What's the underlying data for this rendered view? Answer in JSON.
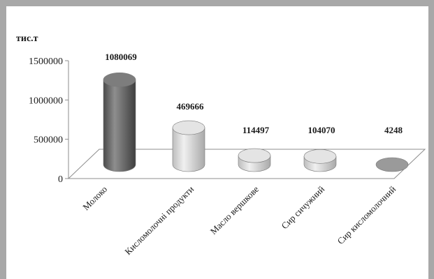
{
  "chart_data": {
    "type": "bar",
    "style": "3d-cylinder",
    "unit_label": "тис.т",
    "categories": [
      "Молоко",
      "Кисломолочні продукти",
      "Масло вершкове",
      "Сир сичужний",
      "Сир кисломолочний"
    ],
    "values": [
      1080069,
      469666,
      114497,
      104070,
      4248
    ],
    "data_labels": [
      "1080069",
      "469666",
      "114497",
      "104070",
      "4248"
    ],
    "ylim": [
      0,
      1500000
    ],
    "y_ticks": [
      0,
      500000,
      1000000,
      1500000
    ],
    "y_tick_labels": [
      "0",
      "500000",
      "1000000",
      "1500000"
    ],
    "colors": {
      "first_bar": "#6b6b6b",
      "other_bars": "#d2d2d2",
      "frame": "#a8a8a8",
      "floor_line": "#8c8c8c"
    },
    "grid": false,
    "legend": "none"
  }
}
